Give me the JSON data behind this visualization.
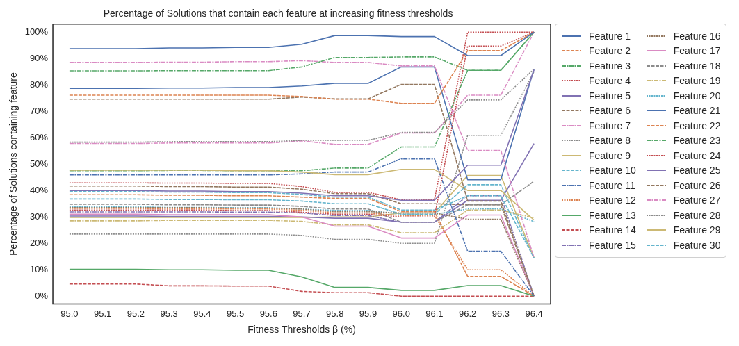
{
  "chart_data": {
    "type": "line",
    "title": "Percentage of Solutions that contain each feature at increasing fitness thresholds",
    "xlabel": "Fitness Thresholds β (%)",
    "ylabel": "Percentage of Solutions containing feature",
    "categories": [
      "95.0",
      "95.1",
      "95.2",
      "95.3",
      "95.4",
      "95.5",
      "95.6",
      "95.7",
      "95.8",
      "95.9",
      "96.0",
      "96.1",
      "96.2",
      "96.3",
      "96.4"
    ],
    "ylim": [
      -3,
      103
    ],
    "yticks": [
      {
        "value": 0,
        "label": "0%"
      },
      {
        "value": 10,
        "label": "10%"
      },
      {
        "value": 20,
        "label": "20%"
      },
      {
        "value": 30,
        "label": "30%"
      },
      {
        "value": 40,
        "label": "40%"
      },
      {
        "value": 50,
        "label": "50%"
      },
      {
        "value": 60,
        "label": "60%"
      },
      {
        "value": 70,
        "label": "70%"
      },
      {
        "value": 80,
        "label": "80%"
      },
      {
        "value": 90,
        "label": "90%"
      },
      {
        "value": 100,
        "label": "100%"
      }
    ],
    "grid": false,
    "legend": "right",
    "marker": "none",
    "series": [
      {
        "name": "Feature 1",
        "color": "#4c72b0",
        "line_style": "solid",
        "values": [
          93.7,
          93.7,
          93.7,
          94,
          94,
          94.2,
          94.2,
          95.4,
          98.7,
          98.7,
          98.3,
          98.3,
          91.1,
          91.1,
          100
        ]
      },
      {
        "name": "Feature 2",
        "color": "#dd8452",
        "line_style": "dashed",
        "values": [
          76.1,
          76.1,
          76.1,
          76.1,
          76.1,
          76.1,
          76.1,
          75.6,
          74.6,
          74.6,
          73,
          73,
          93,
          93,
          100
        ]
      },
      {
        "name": "Feature 3",
        "color": "#55a868",
        "line_style": "dashdot",
        "values": [
          85.3,
          85.3,
          85.3,
          85.4,
          85.4,
          85.4,
          85.4,
          86.8,
          90.4,
          90.4,
          90.6,
          90.6,
          85.5,
          85.5,
          100
        ]
      },
      {
        "name": "Feature 4",
        "color": "#c44e52",
        "line_style": "dotted",
        "values": [
          32.6,
          32.6,
          32.6,
          32.6,
          32.6,
          32.4,
          32.4,
          31.8,
          31,
          31,
          30,
          30,
          94.7,
          94.7,
          100
        ]
      },
      {
        "name": "Feature 5",
        "color": "#8172b3",
        "line_style": "solid",
        "values": [
          40,
          40,
          40,
          39.8,
          39.8,
          39.6,
          39.6,
          39,
          38,
          38,
          36.3,
          36.3,
          49.6,
          49.6,
          85.7
        ]
      },
      {
        "name": "Feature 6",
        "color": "#937860",
        "line_style": "dashed",
        "values": [
          74.6,
          74.6,
          74.6,
          74.6,
          74.6,
          74.6,
          74.6,
          75.4,
          74.7,
          74.7,
          80.2,
          80.2,
          36,
          36,
          0
        ]
      },
      {
        "name": "Feature 7",
        "color": "#da8bc3",
        "line_style": "dashdot",
        "values": [
          88.5,
          88.5,
          88.5,
          88.6,
          88.6,
          88.8,
          88.8,
          89.2,
          88.5,
          88.5,
          87.2,
          87.2,
          55.2,
          55.2,
          14.5
        ]
      },
      {
        "name": "Feature 8",
        "color": "#8c8c8c",
        "line_style": "dotted",
        "values": [
          58.3,
          58.3,
          58.3,
          58.5,
          58.5,
          58.5,
          58.5,
          59,
          59,
          59,
          62,
          62,
          74.3,
          74.3,
          86
        ]
      },
      {
        "name": "Feature 9",
        "color": "#ccb974",
        "line_style": "solid",
        "values": [
          47.7,
          47.7,
          47.7,
          47.7,
          47.7,
          47.5,
          47.5,
          47,
          46,
          46,
          48,
          48,
          40,
          40,
          28.8
        ]
      },
      {
        "name": "Feature 10",
        "color": "#64b5cd",
        "line_style": "dashed",
        "values": [
          39.6,
          39.6,
          39.6,
          39.4,
          39.4,
          39.2,
          39.2,
          38.5,
          37.5,
          37.5,
          32.6,
          32.6,
          38,
          38,
          14.5
        ]
      },
      {
        "name": "Feature 11",
        "color": "#4c72b0",
        "line_style": "dashdot",
        "values": [
          45.9,
          45.9,
          45.9,
          45.9,
          45.9,
          45.9,
          45.9,
          46.3,
          47,
          47,
          52,
          52,
          17,
          17,
          0
        ]
      },
      {
        "name": "Feature 12",
        "color": "#dd8452",
        "line_style": "dotted",
        "values": [
          33.2,
          33.2,
          33.2,
          33,
          33,
          33,
          33,
          32.5,
          31.5,
          31.5,
          30.5,
          30.5,
          10,
          10,
          0
        ]
      },
      {
        "name": "Feature 13",
        "color": "#55a868",
        "line_style": "solid",
        "values": [
          10.2,
          10.2,
          10.2,
          10,
          10,
          9.8,
          9.8,
          7.3,
          3.3,
          3.3,
          2.2,
          2.2,
          4,
          4,
          0
        ]
      },
      {
        "name": "Feature 14",
        "color": "#c44e52",
        "line_style": "dashed",
        "values": [
          4.6,
          4.6,
          4.6,
          3.9,
          3.9,
          3.8,
          3.8,
          1.8,
          1.3,
          1.3,
          0,
          0,
          0,
          0,
          0
        ]
      },
      {
        "name": "Feature 15",
        "color": "#8172b3",
        "line_style": "dashdot",
        "values": [
          31.9,
          31.9,
          31.9,
          31.9,
          31.9,
          31.8,
          31.8,
          31.5,
          30.5,
          30.5,
          28,
          28,
          38,
          38,
          0
        ]
      },
      {
        "name": "Feature 16",
        "color": "#937860",
        "line_style": "dotted",
        "values": [
          33.5,
          33.5,
          33.5,
          33.5,
          33.5,
          33.3,
          33.3,
          33,
          32,
          32,
          31.5,
          31.5,
          29.1,
          29.1,
          0
        ]
      },
      {
        "name": "Feature 17",
        "color": "#da8bc3",
        "line_style": "solid",
        "values": [
          31,
          31,
          31,
          30.8,
          30.8,
          30.8,
          30.8,
          30,
          26.5,
          26.5,
          22,
          22,
          30.7,
          30.7,
          0
        ]
      },
      {
        "name": "Feature 18",
        "color": "#8c8c8c",
        "line_style": "dashed",
        "values": [
          34.8,
          34.8,
          34.8,
          34.6,
          34.6,
          34.5,
          34.5,
          34,
          33,
          33,
          28,
          28,
          34.6,
          34.6,
          43.5
        ]
      },
      {
        "name": "Feature 19",
        "color": "#ccb974",
        "line_style": "dashdot",
        "values": [
          28.5,
          28.5,
          28.5,
          28.7,
          28.7,
          28.7,
          28.7,
          28.3,
          27,
          27,
          24,
          24,
          32.6,
          32.6,
          29.6
        ]
      },
      {
        "name": "Feature 20",
        "color": "#64b5cd",
        "line_style": "dotted",
        "values": [
          33.8,
          33.8,
          33.8,
          33.6,
          33.6,
          33.5,
          33.5,
          33,
          32.5,
          32.5,
          31,
          31,
          33,
          33,
          28.2
        ]
      },
      {
        "name": "Feature 21",
        "color": "#4c72b0",
        "line_style": "solid",
        "values": [
          78.7,
          78.7,
          78.7,
          78.8,
          78.8,
          79,
          79,
          79.6,
          80.6,
          80.6,
          86.8,
          86.8,
          44.1,
          44.1,
          86
        ]
      },
      {
        "name": "Feature 22",
        "color": "#dd8452",
        "line_style": "dashed",
        "values": [
          38.4,
          38.4,
          38.4,
          38.2,
          38.2,
          38,
          38,
          37.5,
          37,
          37,
          32,
          32,
          7.5,
          7.5,
          0
        ]
      },
      {
        "name": "Feature 23",
        "color": "#55a868",
        "line_style": "dashdot",
        "values": [
          47.5,
          47.5,
          47.5,
          47.6,
          47.6,
          47.5,
          47.5,
          47.5,
          48.5,
          48.5,
          56.5,
          56.5,
          85.5,
          85.5,
          100
        ]
      },
      {
        "name": "Feature 24",
        "color": "#c44e52",
        "line_style": "dotted",
        "values": [
          42.9,
          42.9,
          42.9,
          42.8,
          42.8,
          42.7,
          42.7,
          41.5,
          39.3,
          39.3,
          36.5,
          36.5,
          100,
          100,
          100
        ]
      },
      {
        "name": "Feature 25",
        "color": "#8172b3",
        "line_style": "solid",
        "values": [
          30.3,
          30.3,
          30.3,
          30.2,
          30.2,
          30.2,
          30.2,
          30,
          29.5,
          29.5,
          28,
          28,
          36.3,
          36.3,
          57.8
        ]
      },
      {
        "name": "Feature 26",
        "color": "#937860",
        "line_style": "dashed",
        "values": [
          41.7,
          41.7,
          41.7,
          41.5,
          41.5,
          41.3,
          41.3,
          40.5,
          38.8,
          38.8,
          35,
          35,
          34.6,
          34.6,
          0
        ]
      },
      {
        "name": "Feature 27",
        "color": "#da8bc3",
        "line_style": "dashdot",
        "values": [
          57.8,
          57.8,
          57.8,
          58,
          58,
          58,
          58,
          58.8,
          57.5,
          57.5,
          61.8,
          61.8,
          76.1,
          76.1,
          100
        ]
      },
      {
        "name": "Feature 28",
        "color": "#8c8c8c",
        "line_style": "dotted",
        "values": [
          23.5,
          23.5,
          23.5,
          23.5,
          23.5,
          23.5,
          23.5,
          23,
          21.5,
          21.5,
          20,
          20,
          60.9,
          60.9,
          85
        ]
      },
      {
        "name": "Feature 29",
        "color": "#ccb974",
        "line_style": "solid",
        "values": [
          29.8,
          29.8,
          29.8,
          29.8,
          29.8,
          29.8,
          29.8,
          29.8,
          30,
          30,
          31.5,
          31.5,
          45.7,
          45.7,
          14.5
        ]
      },
      {
        "name": "Feature 30",
        "color": "#64b5cd",
        "line_style": "dashed",
        "values": [
          36.8,
          36.8,
          36.8,
          36.6,
          36.6,
          36.5,
          36.5,
          36,
          35,
          35,
          31,
          31,
          42.2,
          42.2,
          14.5
        ]
      }
    ]
  }
}
